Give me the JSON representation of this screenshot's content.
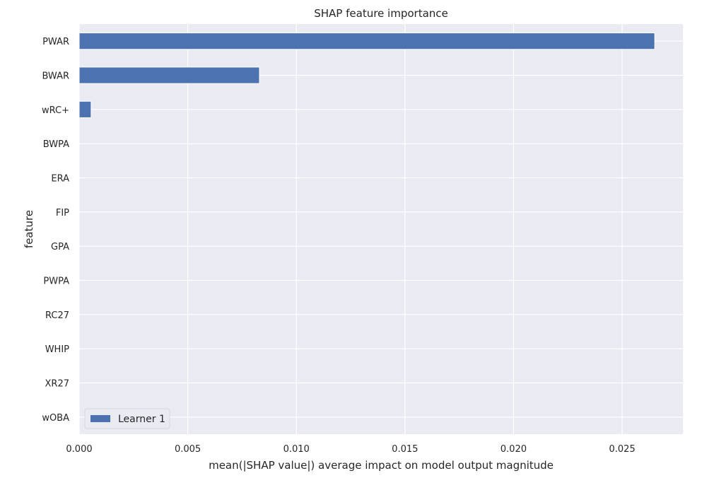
{
  "chart_data": {
    "type": "bar",
    "orientation": "horizontal",
    "title": "SHAP feature importance",
    "xlabel": "mean(|SHAP value|) average impact on model output magnitude",
    "ylabel": "feature",
    "categories": [
      "PWAR",
      "BWAR",
      "wRC+",
      "BWPA",
      "ERA",
      "FIP",
      "GPA",
      "PWPA",
      "RC27",
      "WHIP",
      "XR27",
      "wOBA"
    ],
    "series": [
      {
        "name": "Learner 1",
        "values": [
          0.0265,
          0.0083,
          0.00055,
          0,
          0,
          0,
          0,
          0,
          0,
          0,
          0,
          0
        ],
        "color": "#4c72b0"
      }
    ],
    "xlim": [
      0,
      0.0278
    ],
    "xticks": [
      0.0,
      0.005,
      0.01,
      0.015,
      0.02,
      0.025
    ],
    "xtick_labels": [
      "0.000",
      "0.005",
      "0.010",
      "0.015",
      "0.020",
      "0.025"
    ],
    "grid": true,
    "background_color": "#eaeaf2",
    "grid_color": "#ffffff",
    "legend": {
      "position": "lower-left",
      "entries": [
        "Learner 1"
      ]
    }
  }
}
